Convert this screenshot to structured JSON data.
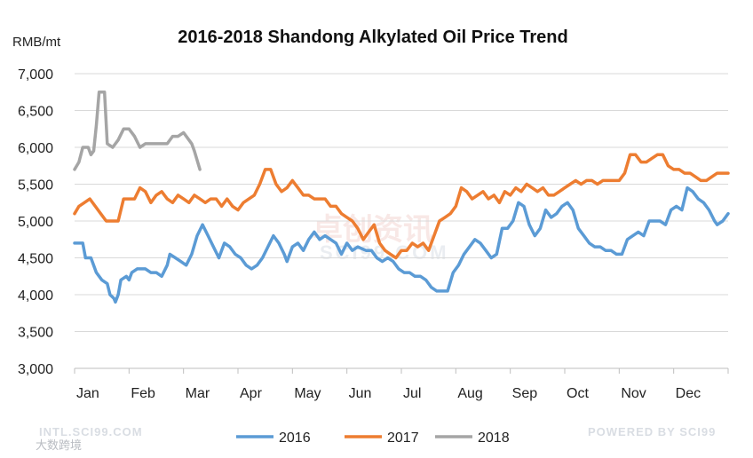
{
  "chart_data": {
    "type": "line",
    "title": "2016-2018 Shandong Alkylated Oil Price Trend",
    "ylabel": "RMB/mt",
    "xlabel": "",
    "ylim": [
      3000,
      7000
    ],
    "yticks": [
      "3,000",
      "3,500",
      "4,000",
      "4,500",
      "5,000",
      "5,500",
      "6,000",
      "6,500",
      "7,000"
    ],
    "ytick_values": [
      3000,
      3500,
      4000,
      4500,
      5000,
      5500,
      6000,
      6500,
      7000
    ],
    "xlim": [
      0,
      12
    ],
    "months": [
      "Jan",
      "Feb",
      "Mar",
      "Apr",
      "May",
      "Jun",
      "Jul",
      "Aug",
      "Sep",
      "Oct",
      "Nov",
      "Dec"
    ],
    "grid": "horizontal",
    "legend_position": "bottom",
    "series": [
      {
        "name": "2016",
        "color": "#5B9BD5",
        "points": [
          [
            0,
            4700
          ],
          [
            0.15,
            4700
          ],
          [
            0.2,
            4500
          ],
          [
            0.3,
            4500
          ],
          [
            0.4,
            4300
          ],
          [
            0.5,
            4200
          ],
          [
            0.6,
            4150
          ],
          [
            0.65,
            4000
          ],
          [
            0.72,
            3950
          ],
          [
            0.75,
            3900
          ],
          [
            0.8,
            4000
          ],
          [
            0.85,
            4200
          ],
          [
            0.95,
            4250
          ],
          [
            1.0,
            4200
          ],
          [
            1.05,
            4300
          ],
          [
            1.15,
            4350
          ],
          [
            1.3,
            4350
          ],
          [
            1.4,
            4300
          ],
          [
            1.5,
            4300
          ],
          [
            1.6,
            4250
          ],
          [
            1.7,
            4400
          ],
          [
            1.75,
            4550
          ],
          [
            1.85,
            4500
          ],
          [
            1.95,
            4450
          ],
          [
            2.05,
            4400
          ],
          [
            2.15,
            4550
          ],
          [
            2.25,
            4800
          ],
          [
            2.35,
            4950
          ],
          [
            2.45,
            4800
          ],
          [
            2.55,
            4650
          ],
          [
            2.65,
            4500
          ],
          [
            2.75,
            4700
          ],
          [
            2.85,
            4650
          ],
          [
            2.95,
            4550
          ],
          [
            3.05,
            4500
          ],
          [
            3.15,
            4400
          ],
          [
            3.25,
            4350
          ],
          [
            3.35,
            4400
          ],
          [
            3.45,
            4500
          ],
          [
            3.55,
            4650
          ],
          [
            3.65,
            4800
          ],
          [
            3.75,
            4700
          ],
          [
            3.85,
            4550
          ],
          [
            3.9,
            4450
          ],
          [
            4.0,
            4650
          ],
          [
            4.1,
            4700
          ],
          [
            4.2,
            4600
          ],
          [
            4.3,
            4750
          ],
          [
            4.4,
            4850
          ],
          [
            4.5,
            4750
          ],
          [
            4.6,
            4800
          ],
          [
            4.7,
            4750
          ],
          [
            4.8,
            4700
          ],
          [
            4.9,
            4550
          ],
          [
            5.0,
            4700
          ],
          [
            5.1,
            4600
          ],
          [
            5.2,
            4650
          ],
          [
            5.35,
            4600
          ],
          [
            5.45,
            4600
          ],
          [
            5.55,
            4500
          ],
          [
            5.65,
            4450
          ],
          [
            5.75,
            4500
          ],
          [
            5.85,
            4450
          ],
          [
            5.95,
            4350
          ],
          [
            6.05,
            4300
          ],
          [
            6.15,
            4300
          ],
          [
            6.25,
            4250
          ],
          [
            6.35,
            4250
          ],
          [
            6.45,
            4200
          ],
          [
            6.55,
            4100
          ],
          [
            6.65,
            4050
          ],
          [
            6.75,
            4050
          ],
          [
            6.85,
            4050
          ],
          [
            6.95,
            4300
          ],
          [
            7.05,
            4400
          ],
          [
            7.15,
            4550
          ],
          [
            7.25,
            4650
          ],
          [
            7.35,
            4750
          ],
          [
            7.45,
            4700
          ],
          [
            7.55,
            4600
          ],
          [
            7.65,
            4500
          ],
          [
            7.75,
            4550
          ],
          [
            7.85,
            4900
          ],
          [
            7.95,
            4900
          ],
          [
            8.05,
            5000
          ],
          [
            8.15,
            5250
          ],
          [
            8.25,
            5200
          ],
          [
            8.35,
            4950
          ],
          [
            8.45,
            4800
          ],
          [
            8.55,
            4900
          ],
          [
            8.65,
            5150
          ],
          [
            8.75,
            5050
          ],
          [
            8.85,
            5100
          ],
          [
            8.95,
            5200
          ],
          [
            9.05,
            5250
          ],
          [
            9.15,
            5150
          ],
          [
            9.25,
            4900
          ],
          [
            9.35,
            4800
          ],
          [
            9.45,
            4700
          ],
          [
            9.55,
            4650
          ],
          [
            9.65,
            4650
          ],
          [
            9.75,
            4600
          ],
          [
            9.85,
            4600
          ],
          [
            9.95,
            4550
          ],
          [
            10.05,
            4550
          ],
          [
            10.15,
            4750
          ],
          [
            10.25,
            4800
          ],
          [
            10.35,
            4850
          ],
          [
            10.45,
            4800
          ],
          [
            10.55,
            5000
          ],
          [
            10.65,
            5000
          ],
          [
            10.75,
            5000
          ],
          [
            10.85,
            4950
          ],
          [
            10.95,
            5150
          ],
          [
            11.05,
            5200
          ],
          [
            11.15,
            5150
          ],
          [
            11.25,
            5450
          ],
          [
            11.35,
            5400
          ],
          [
            11.45,
            5300
          ],
          [
            11.55,
            5250
          ],
          [
            11.65,
            5150
          ],
          [
            11.75,
            5000
          ],
          [
            11.8,
            4950
          ],
          [
            11.9,
            5000
          ],
          [
            12.0,
            5100
          ]
        ]
      },
      {
        "name": "2017",
        "color": "#ED7D31",
        "points": [
          [
            0,
            5100
          ],
          [
            0.08,
            5200
          ],
          [
            0.18,
            5250
          ],
          [
            0.28,
            5300
          ],
          [
            0.38,
            5200
          ],
          [
            0.48,
            5100
          ],
          [
            0.58,
            5000
          ],
          [
            0.7,
            5000
          ],
          [
            0.8,
            5000
          ],
          [
            0.9,
            5300
          ],
          [
            1.0,
            5300
          ],
          [
            1.1,
            5300
          ],
          [
            1.2,
            5450
          ],
          [
            1.3,
            5400
          ],
          [
            1.4,
            5250
          ],
          [
            1.5,
            5350
          ],
          [
            1.6,
            5400
          ],
          [
            1.7,
            5300
          ],
          [
            1.8,
            5250
          ],
          [
            1.9,
            5350
          ],
          [
            2.0,
            5300
          ],
          [
            2.1,
            5250
          ],
          [
            2.2,
            5350
          ],
          [
            2.3,
            5300
          ],
          [
            2.4,
            5250
          ],
          [
            2.5,
            5300
          ],
          [
            2.6,
            5300
          ],
          [
            2.7,
            5200
          ],
          [
            2.8,
            5300
          ],
          [
            2.9,
            5200
          ],
          [
            3.0,
            5150
          ],
          [
            3.1,
            5250
          ],
          [
            3.2,
            5300
          ],
          [
            3.3,
            5350
          ],
          [
            3.4,
            5500
          ],
          [
            3.5,
            5700
          ],
          [
            3.6,
            5700
          ],
          [
            3.7,
            5500
          ],
          [
            3.8,
            5400
          ],
          [
            3.9,
            5450
          ],
          [
            4.0,
            5550
          ],
          [
            4.1,
            5450
          ],
          [
            4.2,
            5350
          ],
          [
            4.3,
            5350
          ],
          [
            4.4,
            5300
          ],
          [
            4.5,
            5300
          ],
          [
            4.6,
            5300
          ],
          [
            4.7,
            5200
          ],
          [
            4.8,
            5200
          ],
          [
            4.9,
            5100
          ],
          [
            5.0,
            5050
          ],
          [
            5.1,
            5000
          ],
          [
            5.2,
            4900
          ],
          [
            5.3,
            4750
          ],
          [
            5.4,
            4850
          ],
          [
            5.5,
            4950
          ],
          [
            5.6,
            4700
          ],
          [
            5.7,
            4600
          ],
          [
            5.8,
            4550
          ],
          [
            5.9,
            4500
          ],
          [
            6.0,
            4600
          ],
          [
            6.1,
            4600
          ],
          [
            6.2,
            4700
          ],
          [
            6.3,
            4650
          ],
          [
            6.4,
            4700
          ],
          [
            6.5,
            4600
          ],
          [
            6.6,
            4800
          ],
          [
            6.7,
            5000
          ],
          [
            6.8,
            5050
          ],
          [
            6.9,
            5100
          ],
          [
            7.0,
            5200
          ],
          [
            7.1,
            5450
          ],
          [
            7.2,
            5400
          ],
          [
            7.3,
            5300
          ],
          [
            7.4,
            5350
          ],
          [
            7.5,
            5400
          ],
          [
            7.6,
            5300
          ],
          [
            7.7,
            5350
          ],
          [
            7.8,
            5250
          ],
          [
            7.9,
            5400
          ],
          [
            8.0,
            5350
          ],
          [
            8.1,
            5450
          ],
          [
            8.2,
            5400
          ],
          [
            8.3,
            5500
          ],
          [
            8.4,
            5450
          ],
          [
            8.5,
            5400
          ],
          [
            8.6,
            5450
          ],
          [
            8.7,
            5350
          ],
          [
            8.8,
            5350
          ],
          [
            8.9,
            5400
          ],
          [
            9.0,
            5450
          ],
          [
            9.1,
            5500
          ],
          [
            9.2,
            5550
          ],
          [
            9.3,
            5500
          ],
          [
            9.4,
            5550
          ],
          [
            9.5,
            5550
          ],
          [
            9.6,
            5500
          ],
          [
            9.7,
            5550
          ],
          [
            9.8,
            5550
          ],
          [
            9.9,
            5550
          ],
          [
            10.0,
            5550
          ],
          [
            10.1,
            5650
          ],
          [
            10.2,
            5900
          ],
          [
            10.3,
            5900
          ],
          [
            10.4,
            5800
          ],
          [
            10.5,
            5800
          ],
          [
            10.6,
            5850
          ],
          [
            10.7,
            5900
          ],
          [
            10.8,
            5900
          ],
          [
            10.9,
            5750
          ],
          [
            11.0,
            5700
          ],
          [
            11.1,
            5700
          ],
          [
            11.2,
            5650
          ],
          [
            11.3,
            5650
          ],
          [
            11.4,
            5600
          ],
          [
            11.5,
            5550
          ],
          [
            11.6,
            5550
          ],
          [
            11.7,
            5600
          ],
          [
            11.8,
            5650
          ],
          [
            11.9,
            5650
          ],
          [
            12.0,
            5650
          ]
        ]
      },
      {
        "name": "2018",
        "color": "#A5A5A5",
        "points": [
          [
            0,
            5700
          ],
          [
            0.08,
            5800
          ],
          [
            0.15,
            6000
          ],
          [
            0.25,
            6000
          ],
          [
            0.3,
            5900
          ],
          [
            0.35,
            5950
          ],
          [
            0.4,
            6300
          ],
          [
            0.45,
            6750
          ],
          [
            0.55,
            6750
          ],
          [
            0.6,
            6050
          ],
          [
            0.7,
            6000
          ],
          [
            0.8,
            6100
          ],
          [
            0.9,
            6250
          ],
          [
            1.0,
            6250
          ],
          [
            1.1,
            6150
          ],
          [
            1.2,
            6000
          ],
          [
            1.3,
            6050
          ],
          [
            1.4,
            6050
          ],
          [
            1.5,
            6050
          ],
          [
            1.6,
            6050
          ],
          [
            1.7,
            6050
          ],
          [
            1.8,
            6150
          ],
          [
            1.9,
            6150
          ],
          [
            2.0,
            6200
          ],
          [
            2.1,
            6100
          ],
          [
            2.15,
            6050
          ],
          [
            2.2,
            5950
          ],
          [
            2.3,
            5700
          ]
        ]
      }
    ]
  },
  "watermarks": {
    "bottom_left": "INTL.SCI99.COM",
    "bottom_right": "POWERED BY SCI99",
    "center_cn": "卓创资讯",
    "center_en": "SCI99.COM",
    "corner_cn": "大数跨境"
  }
}
